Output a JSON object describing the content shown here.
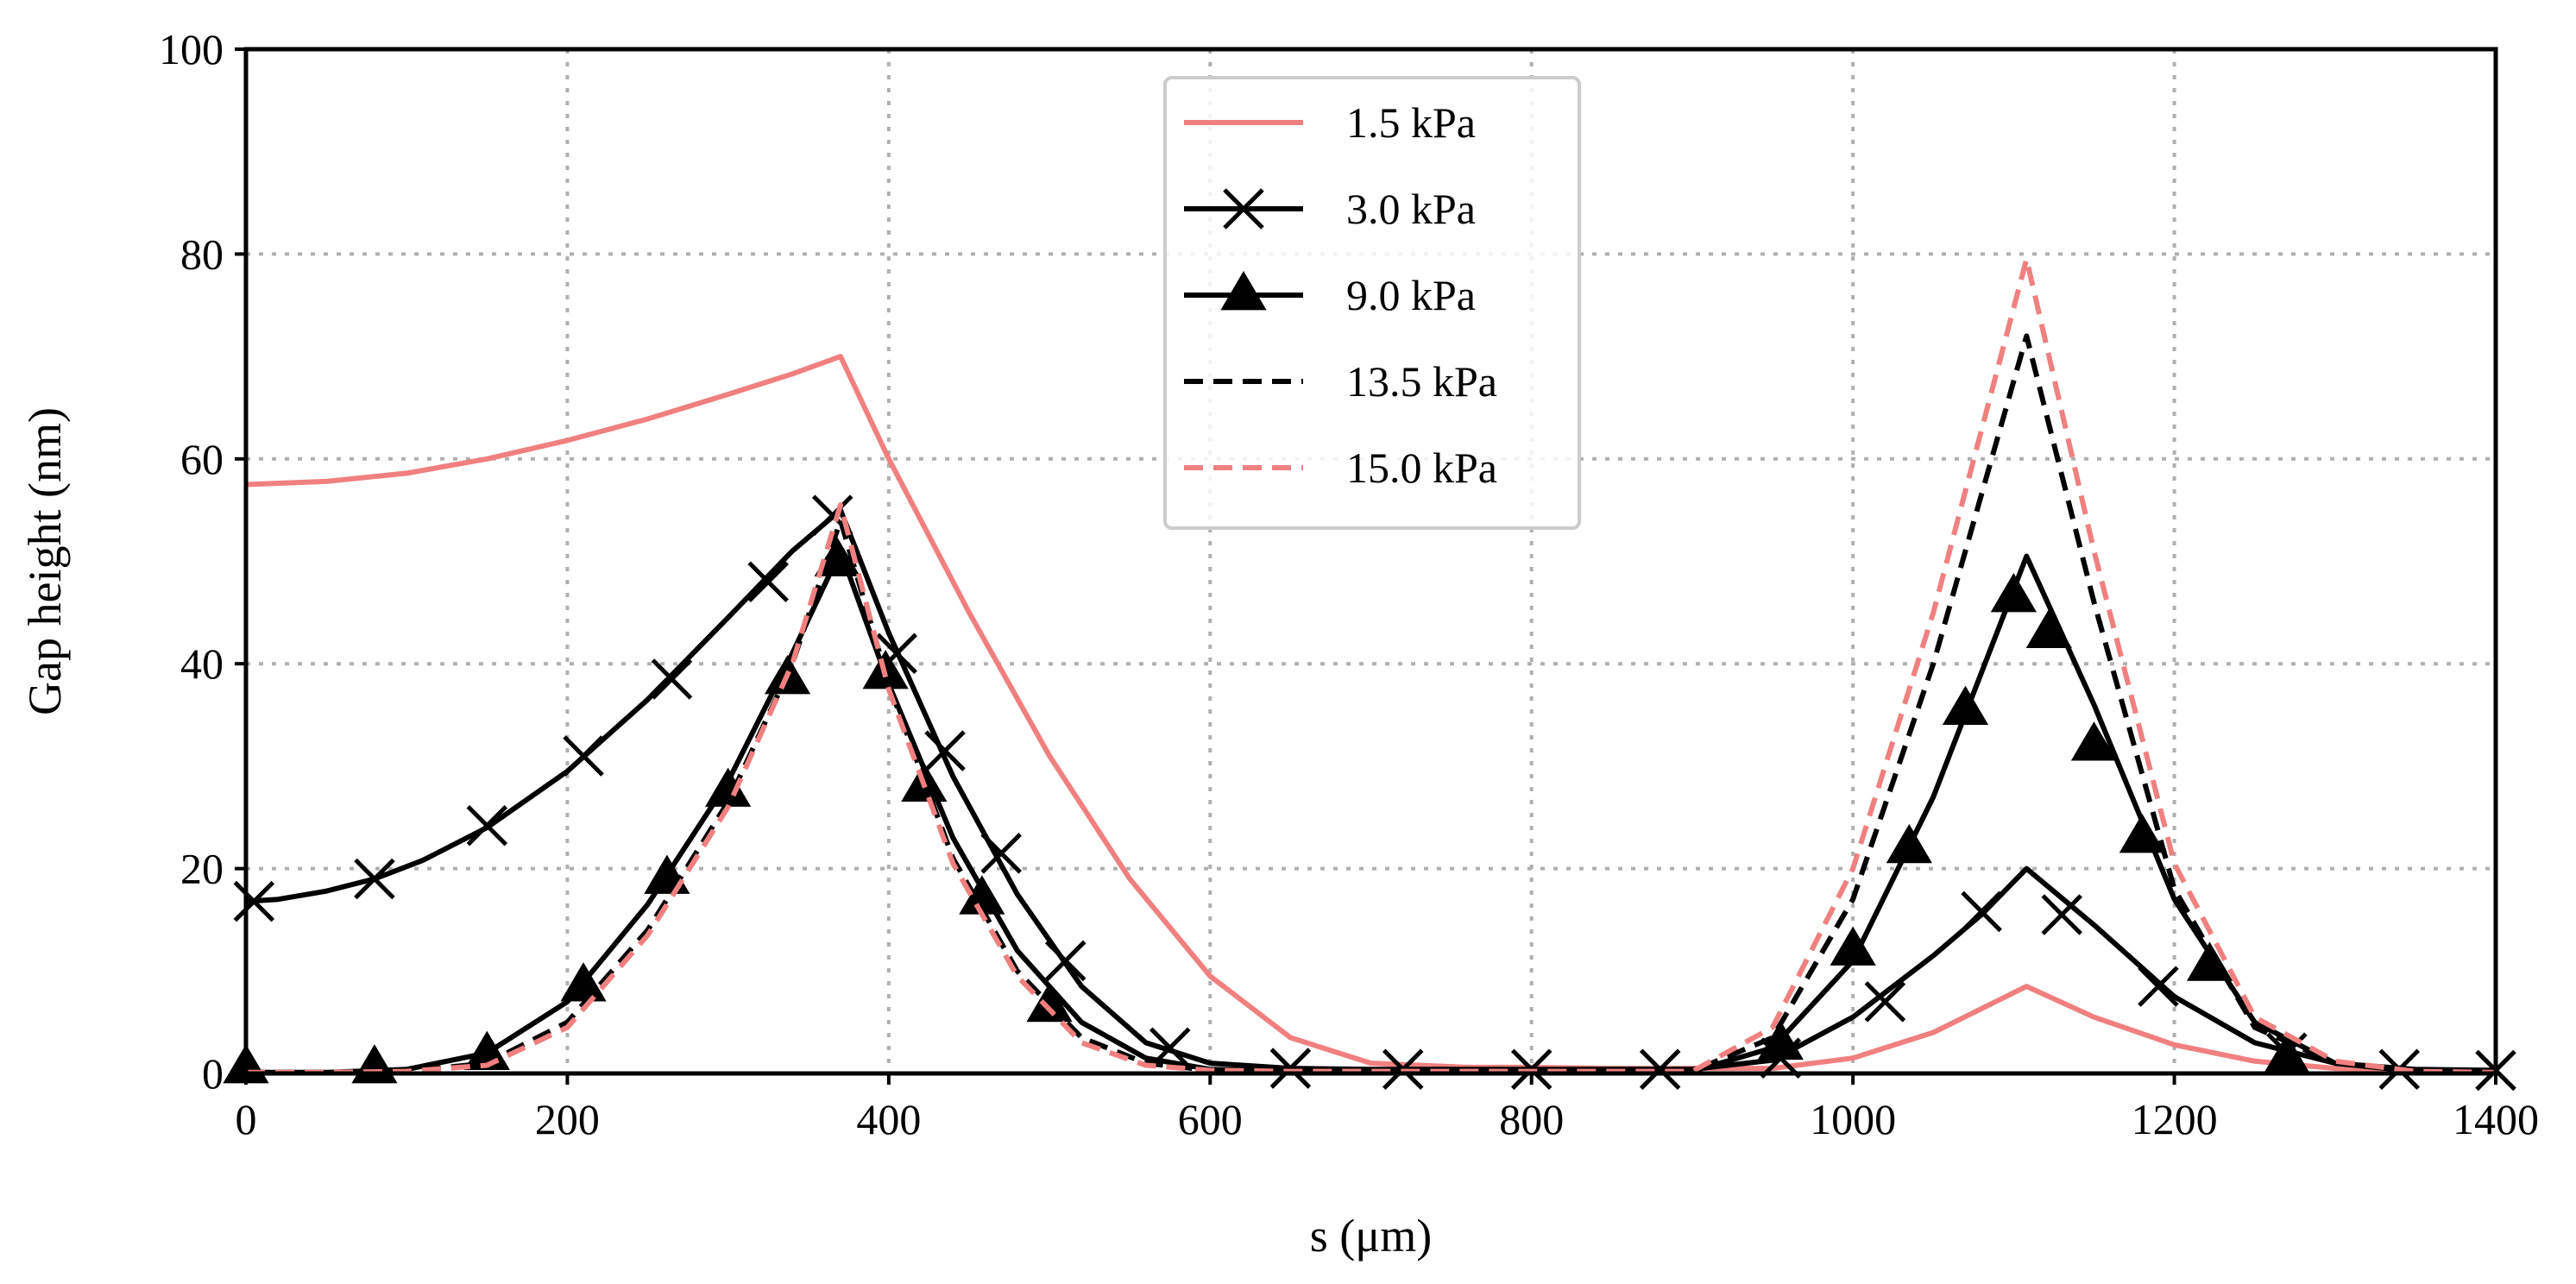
{
  "chart_data": {
    "type": "line",
    "xlabel": "s (μm)",
    "ylabel": "Gap height (nm)",
    "xlim": [
      0,
      1400
    ],
    "ylim": [
      0,
      100
    ],
    "xticks": [
      0,
      200,
      400,
      600,
      800,
      1000,
      1200,
      1400
    ],
    "yticks": [
      0,
      20,
      40,
      60,
      80,
      100
    ],
    "xtick_labels": [
      "0",
      "200",
      "400",
      "600",
      "800",
      "1000",
      "1200",
      "1400"
    ],
    "ytick_labels": [
      "0",
      "20",
      "40",
      "60",
      "80",
      "100"
    ],
    "grid": true,
    "legend_position": "top-center",
    "series": [
      {
        "name": "1.5 kPa",
        "color": "#f08080",
        "dash": "solid",
        "marker": "none",
        "x": [
          0,
          50,
          100,
          150,
          200,
          250,
          300,
          340,
          370,
          400,
          450,
          500,
          550,
          600,
          650,
          700,
          760,
          800,
          850,
          900,
          950,
          1000,
          1050,
          1108,
          1150,
          1200,
          1250,
          1300,
          1350,
          1400
        ],
        "y": [
          57.5,
          57.8,
          58.6,
          60,
          61.8,
          63.9,
          66.3,
          68.3,
          70,
          60,
          45,
          31,
          19,
          9.5,
          3.5,
          1,
          0.6,
          0.6,
          0.5,
          0.5,
          0.5,
          1.5,
          4,
          8.5,
          5.5,
          2.8,
          1.2,
          0.5,
          0.3,
          0.3
        ]
      },
      {
        "name": "3.0 kPa",
        "color": "#000000",
        "dash": "solid",
        "marker": "x",
        "x": [
          0,
          20,
          50,
          80,
          110,
          150,
          200,
          250,
          300,
          340,
          370,
          400,
          440,
          480,
          520,
          560,
          600,
          650,
          700,
          750,
          800,
          850,
          900,
          950,
          1000,
          1050,
          1080,
          1108,
          1150,
          1200,
          1250,
          1300,
          1350,
          1400
        ],
        "y": [
          16.8,
          17,
          17.8,
          19,
          20.8,
          24,
          29.5,
          36.5,
          44.5,
          51,
          55,
          43,
          29,
          17.5,
          8.5,
          3,
          1,
          0.5,
          0.4,
          0.4,
          0.4,
          0.4,
          0.4,
          1.3,
          5.5,
          11.5,
          15.5,
          20,
          14.5,
          7.5,
          3,
          1,
          0.4,
          0.3
        ],
        "marker_x": [
          5,
          80,
          150,
          210,
          265,
          325,
          365,
          405,
          435,
          470,
          510,
          575,
          650,
          720,
          800,
          880,
          955,
          1020,
          1080,
          1130,
          1190,
          1270,
          1340,
          1400
        ],
        "marker_y": [
          16.8,
          19,
          24.2,
          31,
          38.5,
          48,
          54.5,
          41,
          31.5,
          21.5,
          11,
          2.5,
          0.5,
          0.4,
          0.4,
          0.4,
          1.5,
          7,
          15.8,
          15.5,
          8.5,
          2,
          0.4,
          0.3
        ]
      },
      {
        "name": "9.0 kPa",
        "color": "#000000",
        "dash": "solid",
        "marker": "triangle",
        "x": [
          0,
          50,
          100,
          150,
          200,
          250,
          300,
          340,
          370,
          400,
          440,
          480,
          520,
          560,
          600,
          650,
          700,
          800,
          900,
          950,
          1000,
          1050,
          1108,
          1150,
          1200,
          1250,
          1300,
          1350,
          1400
        ],
        "y": [
          0.1,
          0.1,
          0.4,
          2,
          7,
          16.5,
          28.5,
          41,
          51,
          38,
          23,
          12,
          5,
          1.5,
          0.4,
          0.2,
          0.2,
          0.2,
          0.2,
          2.5,
          11,
          27,
          50.5,
          36,
          17,
          5,
          1,
          0.2,
          0.1
        ],
        "marker_x": [
          0,
          80,
          150,
          210,
          262,
          300,
          337,
          368,
          398,
          422,
          458,
          500,
          955,
          1000,
          1035,
          1070,
          1100,
          1122,
          1150,
          1180,
          1222,
          1270
        ],
        "marker_y": [
          0.5,
          0.5,
          1.8,
          8.5,
          19,
          27.5,
          38.5,
          50,
          39,
          28,
          17,
          6.5,
          2.8,
          12,
          22,
          35.5,
          46.5,
          43,
          32,
          23,
          10.5,
          1.5
        ]
      },
      {
        "name": "13.5 kPa",
        "color": "#000000",
        "dash": "dashed",
        "marker": "none",
        "x": [
          0,
          50,
          100,
          150,
          200,
          250,
          300,
          340,
          370,
          400,
          440,
          480,
          520,
          560,
          600,
          650,
          700,
          800,
          900,
          950,
          1000,
          1050,
          1108,
          1150,
          1200,
          1250,
          1300,
          1350,
          1400
        ],
        "y": [
          0.1,
          0.1,
          0.2,
          1,
          5,
          14,
          26.5,
          40,
          54,
          38,
          21,
          10,
          3.5,
          1,
          0.3,
          0.2,
          0.2,
          0.2,
          0.2,
          3.5,
          17,
          40,
          72,
          46,
          18,
          4.5,
          1,
          0.2,
          0.1
        ]
      },
      {
        "name": "15.0 kPa",
        "color": "#f08080",
        "dash": "dashed",
        "marker": "none",
        "x": [
          0,
          50,
          100,
          150,
          200,
          250,
          300,
          340,
          370,
          400,
          440,
          480,
          520,
          560,
          600,
          650,
          700,
          800,
          900,
          950,
          1000,
          1050,
          1108,
          1150,
          1200,
          1250,
          1300,
          1350,
          1400
        ],
        "y": [
          0.1,
          0.1,
          0.2,
          0.8,
          4.5,
          13.5,
          26,
          40,
          55.5,
          37.5,
          20.5,
          9.5,
          3,
          0.8,
          0.3,
          0.2,
          0.2,
          0.2,
          0.2,
          4.5,
          20,
          45,
          79.5,
          51,
          20.5,
          5.5,
          1.2,
          0.2,
          0.1
        ]
      }
    ]
  }
}
